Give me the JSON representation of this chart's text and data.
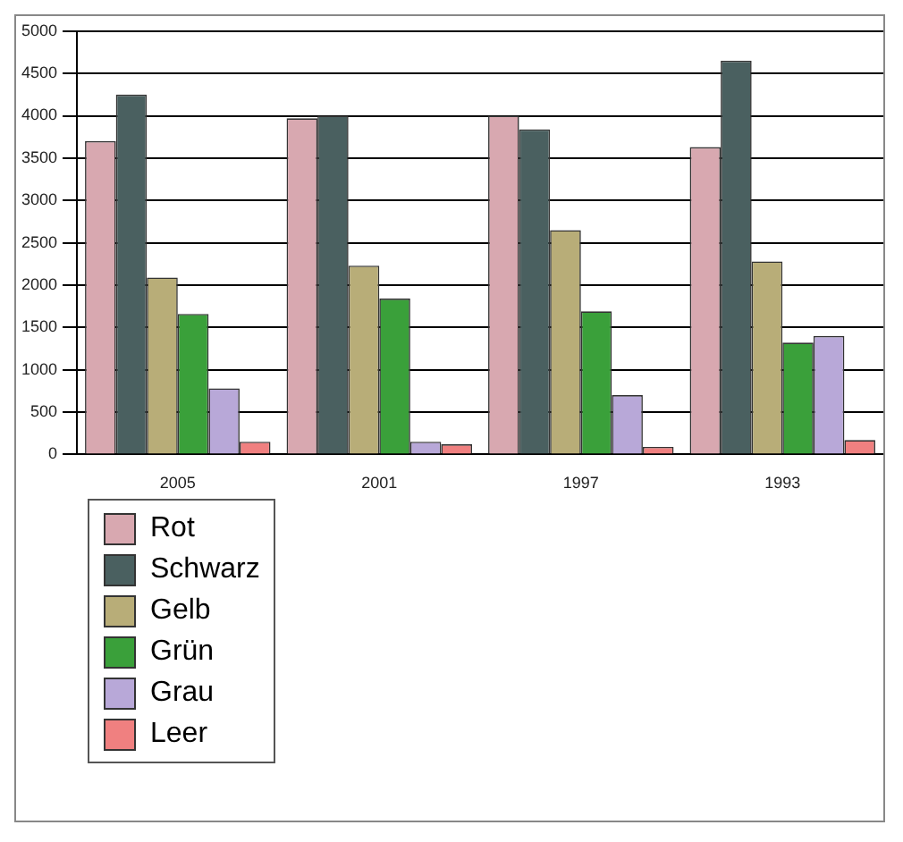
{
  "chart_data": {
    "type": "bar",
    "categories": [
      "2005",
      "2001",
      "1997",
      "1993"
    ],
    "series": [
      {
        "name": "Rot",
        "color": "#d8a8b0",
        "values": [
          3700,
          3970,
          4000,
          3630
        ]
      },
      {
        "name": "Schwarz",
        "color": "#4a6060",
        "values": [
          4250,
          4000,
          3840,
          4650
        ]
      },
      {
        "name": "Gelb",
        "color": "#b8ad78",
        "values": [
          2090,
          2230,
          2650,
          2280
        ]
      },
      {
        "name": "Grün",
        "color": "#3aa03a",
        "values": [
          1660,
          1840,
          1690,
          1320
        ]
      },
      {
        "name": "Grau",
        "color": "#b8a8d8",
        "values": [
          780,
          150,
          700,
          1400
        ]
      },
      {
        "name": "Leer",
        "color": "#f08080",
        "values": [
          150,
          120,
          90,
          170
        ]
      }
    ],
    "ylim": [
      0,
      5000
    ],
    "yticks": [
      0,
      500,
      1000,
      1500,
      2000,
      2500,
      3000,
      3500,
      4000,
      4500,
      5000
    ],
    "grid": "y",
    "legend": "bottom left"
  }
}
